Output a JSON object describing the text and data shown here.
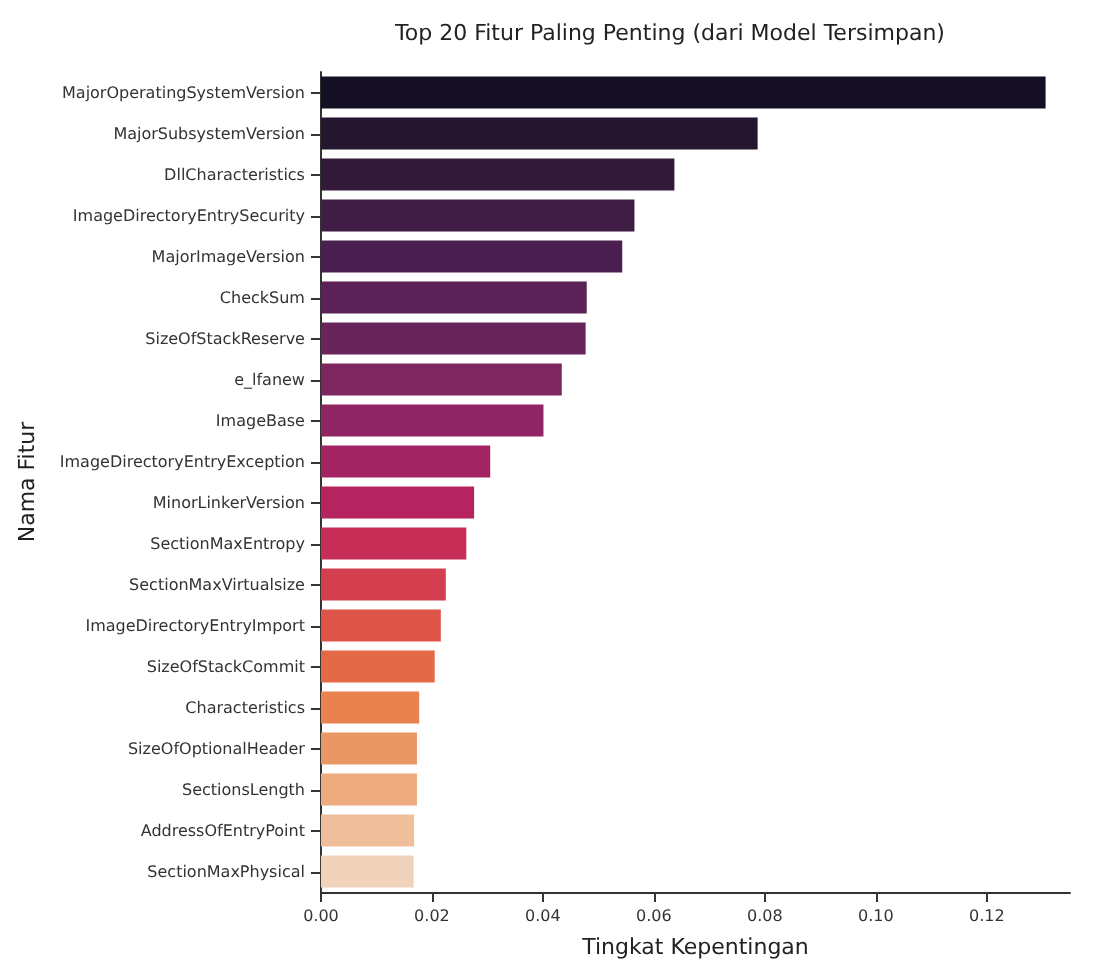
{
  "chart_data": {
    "type": "bar",
    "orientation": "horizontal",
    "title": "Top 20 Fitur Paling Penting (dari Model Tersimpan)",
    "xlabel": "Tingkat Kepentingan",
    "ylabel": "Nama Fitur",
    "categories": [
      "MajorOperatingSystemVersion",
      "MajorSubsystemVersion",
      "DllCharacteristics",
      "ImageDirectoryEntrySecurity",
      "MajorImageVersion",
      "CheckSum",
      "SizeOfStackReserve",
      "e_lfanew",
      "ImageBase",
      "ImageDirectoryEntryException",
      "MinorLinkerVersion",
      "SectionMaxEntropy",
      "SectionMaxVirtualsize",
      "ImageDirectoryEntryImport",
      "SizeOfStackCommit",
      "Characteristics",
      "SizeOfOptionalHeader",
      "SectionsLength",
      "AddressOfEntryPoint",
      "SectionMaxPhysical"
    ],
    "values": [
      0.1306,
      0.0787,
      0.0637,
      0.0565,
      0.0543,
      0.0479,
      0.0477,
      0.0434,
      0.0401,
      0.0305,
      0.0276,
      0.0262,
      0.0225,
      0.0216,
      0.0205,
      0.0177,
      0.0173,
      0.0173,
      0.0168,
      0.0167
    ],
    "colors": [
      "#150f24",
      "#23162e",
      "#331a3b",
      "#3f1d45",
      "#4b2050",
      "#5a2256",
      "#6a245c",
      "#7d2660",
      "#8f2562",
      "#a22462",
      "#b5245e",
      "#c62d57",
      "#d43f4f",
      "#de5448",
      "#e46a47",
      "#e9824f",
      "#eb9765",
      "#edab7f",
      "#efbf9c",
      "#f1d2bb"
    ],
    "xlim": [
      0,
      0.135
    ],
    "xticks": [
      {
        "value": 0,
        "label": "0.00"
      },
      {
        "value": 0.02,
        "label": "0.02"
      },
      {
        "value": 0.04,
        "label": "0.04"
      },
      {
        "value": 0.06,
        "label": "0.06"
      },
      {
        "value": 0.08,
        "label": "0.08"
      },
      {
        "value": 0.1,
        "label": "0.10"
      },
      {
        "value": 0.12,
        "label": "0.12"
      }
    ],
    "grid": false
  }
}
